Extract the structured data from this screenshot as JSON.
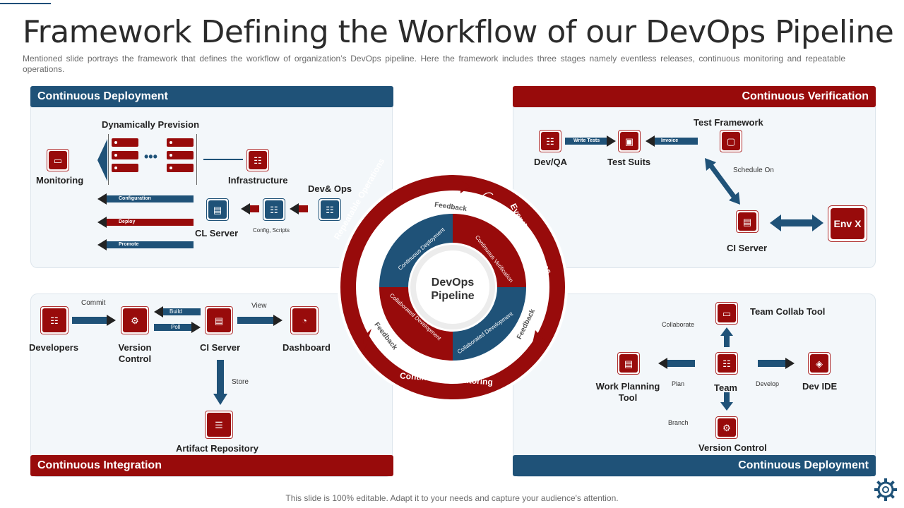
{
  "title": "Framework Defining the Workflow of our DevOps Pipeline",
  "subtitle": "Mentioned slide portrays the framework that defines the workflow of organization’s DevOps pipeline. Here the framework includes three stages namely eventless releases, continuous monitoring and repeatable operations.",
  "footer": "This slide is 100% editable. Adapt it to your needs and capture your audience's attention.",
  "colors": {
    "blue": "#1f5278",
    "red": "#980b0b"
  },
  "top_left": {
    "header": "Continuous Deployment",
    "dynamically_prevision": "Dynamically Prevision",
    "monitoring": "Monitoring",
    "infrastructure": "Infrastructure",
    "dev_ops": "Dev& Ops",
    "cl_server": "CL Server",
    "config_scripts": "Config, Scripts",
    "configuration": "Configuration",
    "deploy": "Deploy",
    "promote": "Promote"
  },
  "top_right": {
    "header": "Continuous Verification",
    "test_framework": "Test Framework",
    "write_tests": "Write Tests",
    "invoice": "Invoice",
    "dev_qa": "Dev/QA",
    "test_suits": "Test Suits",
    "schedule_on": "Schedule On",
    "ci_server": "CI Server",
    "env_x": "Env X"
  },
  "bottom_left": {
    "header": "Continuous Integration",
    "commit": "Commit",
    "build": "Build",
    "poll": "Poll",
    "view": "View",
    "developers": "Developers",
    "version_control": "Version Control",
    "ci_server": "CI Server",
    "dashboard": "Dashboard",
    "store": "Store",
    "artifact_repository": "Artifact Repository"
  },
  "bottom_right": {
    "header": "Continuous Deployment",
    "team_collab_tool": "Team Collab Tool",
    "collaborate": "Collaborate",
    "work_planning_tool": "Work Planning Tool",
    "plan": "Plan",
    "team": "Team",
    "develop": "Develop",
    "dev_ide": "Dev IDE",
    "branch": "Branch",
    "version_control": "Version Control"
  },
  "center": {
    "line1": "DevOps",
    "line2": "Pipeline",
    "outer_repeatable": "Repeatable Operations",
    "outer_eventless": "Eventless Releases",
    "outer_monitoring": "Continuous Monitoring",
    "feedback_top": "Feedback",
    "feedback_left": "Feedback",
    "feedback_right": "Feedback",
    "inner_cd": "Continuous Deployment",
    "inner_cv": "Continuous Verification",
    "inner_collab_left": "Collaborated Development",
    "inner_collab_right": "Collaborated Development"
  },
  "icons": {
    "monitor": "monitor-icon",
    "team": "team-icon",
    "server": "server-icon",
    "document": "document-icon",
    "gear": "gear-icon",
    "database": "database-icon",
    "dashboard": "dashboard-icon",
    "briefcase": "briefcase-icon",
    "chat": "chat-icon",
    "cube": "cube-icon"
  }
}
